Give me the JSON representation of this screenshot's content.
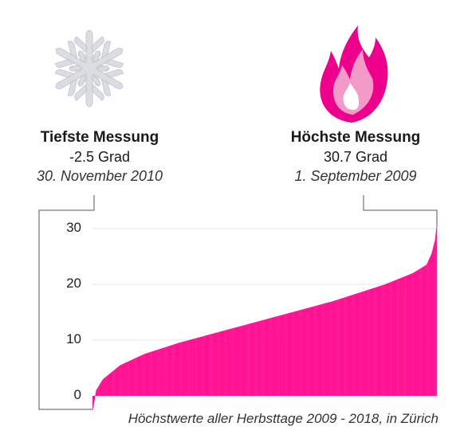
{
  "labels": {
    "min": {
      "title": "Tiefste Messung",
      "value": "-2.5 Grad",
      "date": "30. November 2010"
    },
    "max": {
      "title": "Höchste Messung",
      "value": "30.7 Grad",
      "date": "1. September 2009"
    }
  },
  "caption": "Höchstwerte aller Herbsttage 2009 - 2018, in Zürich",
  "icons": {
    "min": "snowflake-icon",
    "max": "flame-icon"
  },
  "colors": {
    "bars": "#ff1493",
    "snowflake": "#dcdde3",
    "flame_outer": "#ec008c",
    "flame_inner": "#f49ac9",
    "grid": "#e6e6e6"
  },
  "chart_data": {
    "type": "bar",
    "description_free": true,
    "sorted": "ascending",
    "x_count": 910,
    "min_value": -2.5,
    "max_value": 30.7,
    "anchors": [
      [
        0,
        -2.5
      ],
      [
        0.01,
        1.0
      ],
      [
        0.03,
        3.0
      ],
      [
        0.08,
        5.5
      ],
      [
        0.15,
        7.5
      ],
      [
        0.25,
        9.5
      ],
      [
        0.4,
        12.0
      ],
      [
        0.55,
        14.5
      ],
      [
        0.7,
        17.0
      ],
      [
        0.85,
        20.0
      ],
      [
        0.93,
        22.0
      ],
      [
        0.97,
        23.5
      ],
      [
        0.985,
        25.5
      ],
      [
        0.995,
        28.0
      ],
      [
        1.0,
        30.7
      ]
    ],
    "yticks": [
      0,
      10,
      20,
      30
    ],
    "ylim": [
      -2.5,
      30.7
    ],
    "grid": true,
    "xlabel": "",
    "ylabel": ""
  }
}
